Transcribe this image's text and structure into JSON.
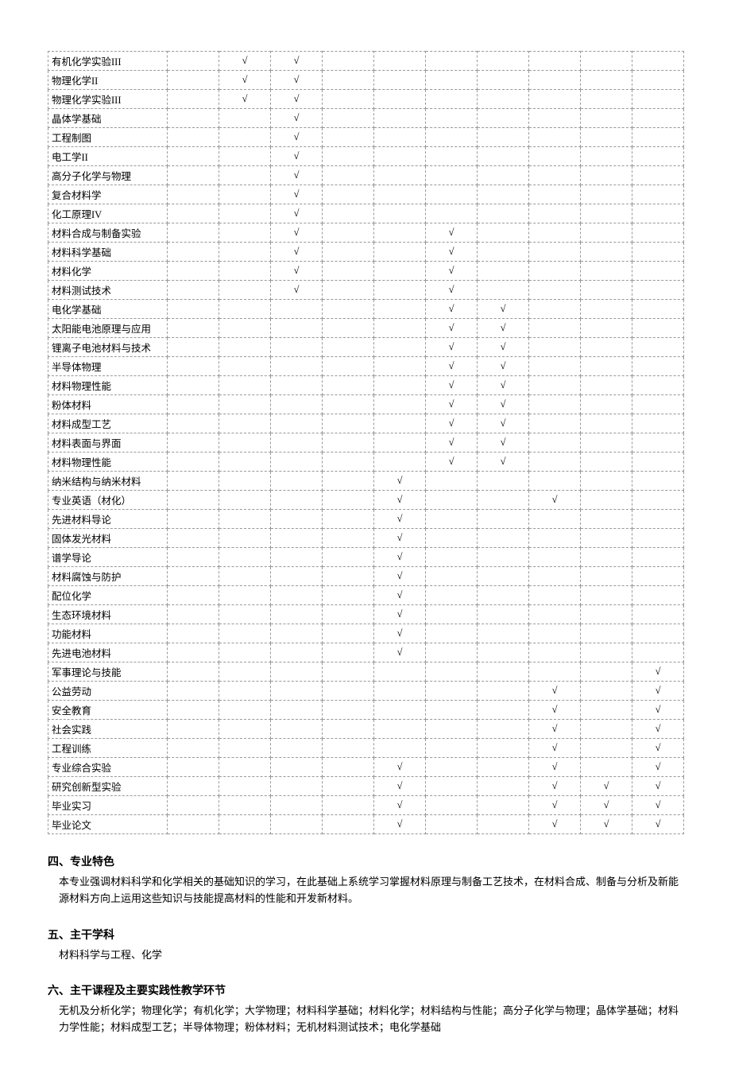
{
  "table": {
    "check_mark": "√",
    "columns_count": 11,
    "rows": [
      {
        "name": "有机化学实验III",
        "c": [
          0,
          1,
          1,
          0,
          0,
          0,
          0,
          0,
          0,
          0
        ]
      },
      {
        "name": "物理化学II",
        "c": [
          0,
          1,
          1,
          0,
          0,
          0,
          0,
          0,
          0,
          0
        ]
      },
      {
        "name": "物理化学实验III",
        "c": [
          0,
          1,
          1,
          0,
          0,
          0,
          0,
          0,
          0,
          0
        ]
      },
      {
        "name": "晶体学基础",
        "c": [
          0,
          0,
          1,
          0,
          0,
          0,
          0,
          0,
          0,
          0
        ]
      },
      {
        "name": "工程制图",
        "c": [
          0,
          0,
          1,
          0,
          0,
          0,
          0,
          0,
          0,
          0
        ]
      },
      {
        "name": "电工学II",
        "c": [
          0,
          0,
          1,
          0,
          0,
          0,
          0,
          0,
          0,
          0
        ]
      },
      {
        "name": "高分子化学与物理",
        "c": [
          0,
          0,
          1,
          0,
          0,
          0,
          0,
          0,
          0,
          0
        ]
      },
      {
        "name": "复合材料学",
        "c": [
          0,
          0,
          1,
          0,
          0,
          0,
          0,
          0,
          0,
          0
        ]
      },
      {
        "name": "化工原理IV",
        "c": [
          0,
          0,
          1,
          0,
          0,
          0,
          0,
          0,
          0,
          0
        ]
      },
      {
        "name": "材料合成与制备实验",
        "c": [
          0,
          0,
          1,
          0,
          0,
          1,
          0,
          0,
          0,
          0
        ]
      },
      {
        "name": "材料科学基础",
        "c": [
          0,
          0,
          1,
          0,
          0,
          1,
          0,
          0,
          0,
          0
        ]
      },
      {
        "name": "材料化学",
        "c": [
          0,
          0,
          1,
          0,
          0,
          1,
          0,
          0,
          0,
          0
        ]
      },
      {
        "name": "材料测试技术",
        "c": [
          0,
          0,
          1,
          0,
          0,
          1,
          0,
          0,
          0,
          0
        ]
      },
      {
        "name": "电化学基础",
        "c": [
          0,
          0,
          0,
          0,
          0,
          1,
          1,
          0,
          0,
          0
        ]
      },
      {
        "name": "太阳能电池原理与应用",
        "c": [
          0,
          0,
          0,
          0,
          0,
          1,
          1,
          0,
          0,
          0
        ]
      },
      {
        "name": "锂离子电池材料与技术",
        "c": [
          0,
          0,
          0,
          0,
          0,
          1,
          1,
          0,
          0,
          0
        ]
      },
      {
        "name": "半导体物理",
        "c": [
          0,
          0,
          0,
          0,
          0,
          1,
          1,
          0,
          0,
          0
        ]
      },
      {
        "name": "材料物理性能",
        "c": [
          0,
          0,
          0,
          0,
          0,
          1,
          1,
          0,
          0,
          0
        ]
      },
      {
        "name": "粉体材料",
        "c": [
          0,
          0,
          0,
          0,
          0,
          1,
          1,
          0,
          0,
          0
        ]
      },
      {
        "name": "材料成型工艺",
        "c": [
          0,
          0,
          0,
          0,
          0,
          1,
          1,
          0,
          0,
          0
        ]
      },
      {
        "name": "材料表面与界面",
        "c": [
          0,
          0,
          0,
          0,
          0,
          1,
          1,
          0,
          0,
          0
        ]
      },
      {
        "name": "材料物理性能",
        "c": [
          0,
          0,
          0,
          0,
          0,
          1,
          1,
          0,
          0,
          0
        ]
      },
      {
        "name": "纳米结构与纳米材料",
        "c": [
          0,
          0,
          0,
          0,
          1,
          0,
          0,
          0,
          0,
          0
        ]
      },
      {
        "name": "专业英语（材化）",
        "c": [
          0,
          0,
          0,
          0,
          1,
          0,
          0,
          1,
          0,
          0
        ]
      },
      {
        "name": "先进材料导论",
        "c": [
          0,
          0,
          0,
          0,
          1,
          0,
          0,
          0,
          0,
          0
        ]
      },
      {
        "name": "固体发光材料",
        "c": [
          0,
          0,
          0,
          0,
          1,
          0,
          0,
          0,
          0,
          0
        ]
      },
      {
        "name": "谱学导论",
        "c": [
          0,
          0,
          0,
          0,
          1,
          0,
          0,
          0,
          0,
          0
        ]
      },
      {
        "name": "材料腐蚀与防护",
        "c": [
          0,
          0,
          0,
          0,
          1,
          0,
          0,
          0,
          0,
          0
        ]
      },
      {
        "name": "配位化学",
        "c": [
          0,
          0,
          0,
          0,
          1,
          0,
          0,
          0,
          0,
          0
        ]
      },
      {
        "name": "生态环境材料",
        "c": [
          0,
          0,
          0,
          0,
          1,
          0,
          0,
          0,
          0,
          0
        ]
      },
      {
        "name": "功能材料",
        "c": [
          0,
          0,
          0,
          0,
          1,
          0,
          0,
          0,
          0,
          0
        ]
      },
      {
        "name": "先进电池材料",
        "c": [
          0,
          0,
          0,
          0,
          1,
          0,
          0,
          0,
          0,
          0
        ]
      },
      {
        "name": "军事理论与技能",
        "c": [
          0,
          0,
          0,
          0,
          0,
          0,
          0,
          0,
          0,
          0
        ],
        "last": 1
      },
      {
        "name": "公益劳动",
        "c": [
          0,
          0,
          0,
          0,
          0,
          0,
          0,
          1,
          0,
          1
        ],
        "last": 1
      },
      {
        "name": "安全教育",
        "c": [
          0,
          0,
          0,
          0,
          0,
          0,
          0,
          1,
          0,
          1
        ],
        "last": 1
      },
      {
        "name": "社会实践",
        "c": [
          0,
          0,
          0,
          0,
          0,
          0,
          0,
          1,
          0,
          1
        ],
        "last": 1
      },
      {
        "name": "工程训练",
        "c": [
          0,
          0,
          0,
          0,
          0,
          0,
          0,
          1,
          0,
          1
        ],
        "last": 1
      },
      {
        "name": "专业综合实验",
        "c": [
          0,
          0,
          0,
          0,
          1,
          0,
          0,
          1,
          0,
          1
        ]
      },
      {
        "name": "研究创新型实验",
        "c": [
          0,
          0,
          0,
          0,
          1,
          0,
          0,
          1,
          1,
          1
        ]
      },
      {
        "name": "毕业实习",
        "c": [
          0,
          0,
          0,
          0,
          1,
          0,
          0,
          1,
          1,
          1
        ]
      },
      {
        "name": "毕业论文",
        "c": [
          0,
          0,
          0,
          0,
          1,
          0,
          0,
          1,
          1,
          1
        ]
      }
    ]
  },
  "sections": {
    "s4": {
      "heading": "四、专业特色",
      "body": "本专业强调材料科学和化学相关的基础知识的学习，在此基础上系统学习掌握材料原理与制备工艺技术，在材料合成、制备与分析及新能源材料方向上运用这些知识与技能提高材料的性能和开发新材料。"
    },
    "s5": {
      "heading": "五、主干学科",
      "body": "材料科学与工程、化学"
    },
    "s6": {
      "heading": "六、主干课程及主要实践性教学环节",
      "body": "无机及分析化学；物理化学；有机化学；大学物理；材料科学基础；材料化学；材料结构与性能；高分子化学与物理；晶体学基础；材料力学性能；材料成型工艺；半导体物理；粉体材料；无机材料测试技术；电化学基础"
    }
  }
}
